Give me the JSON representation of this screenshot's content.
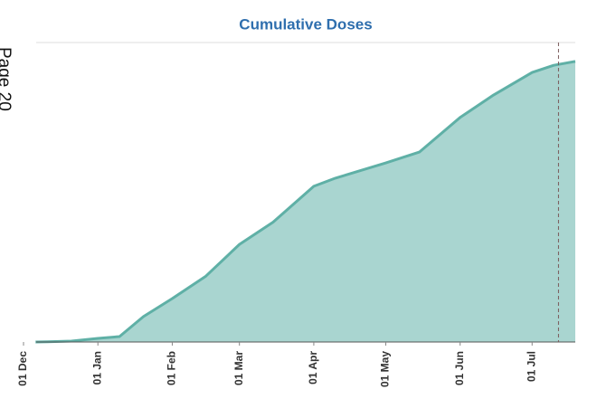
{
  "page_label": "Page 20",
  "chart_data": {
    "type": "area",
    "title": "Cumulative Doses",
    "x": [
      5,
      10,
      20,
      31,
      40,
      50,
      62,
      76,
      90,
      104,
      121,
      130,
      151,
      165,
      182,
      196,
      212,
      221,
      230
    ],
    "series": [
      {
        "color": "#5fb0a6",
        "fill": "#a9d5d0",
        "values": [
          0,
          0.1,
          0.3,
          1.2,
          1.8,
          8.5,
          14.5,
          22,
          32.6,
          40,
          52,
          54.7,
          59.8,
          63.4,
          75,
          82.5,
          90,
          92.4,
          93.7
        ]
      }
    ],
    "xlim": [
      0,
      230
    ],
    "xticks": [
      {
        "value": 0,
        "label": "01 Dec"
      },
      {
        "value": 31,
        "label": "01 Jan"
      },
      {
        "value": 62,
        "label": "01 Feb"
      },
      {
        "value": 90,
        "label": "01 Mar"
      },
      {
        "value": 121,
        "label": "01 Apr"
      },
      {
        "value": 151,
        "label": "01 May"
      },
      {
        "value": 182,
        "label": "01 Jun"
      },
      {
        "value": 212,
        "label": "01 Jul"
      }
    ],
    "ylim": [
      0,
      100
    ],
    "reference_line": 223
  }
}
